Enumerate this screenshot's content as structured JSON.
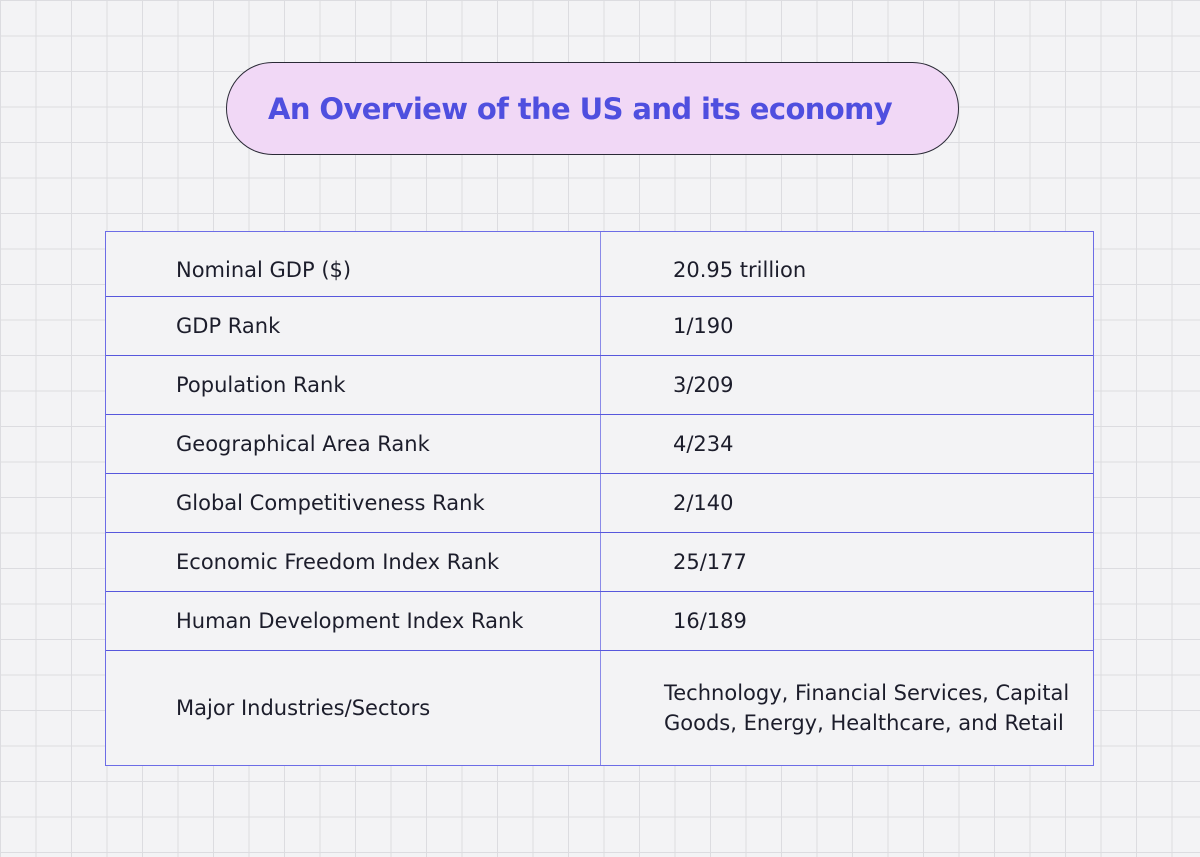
{
  "title": "An Overview of the US and its economy",
  "colors": {
    "background": "#f3f3f5",
    "grid_line": "#dcdce0",
    "pill_fill": "#f1d8f6",
    "pill_shadow": "#16161d",
    "title_text": "#4f4fdf",
    "table_border": "#5757dc",
    "body_text": "#1c1d2b"
  },
  "table": {
    "rows": [
      {
        "label": "Nominal GDP ($)",
        "value": "20.95 trillion"
      },
      {
        "label": "GDP Rank",
        "value": "1/190"
      },
      {
        "label": "Population Rank",
        "value": "3/209"
      },
      {
        "label": "Geographical Area Rank",
        "value": "4/234"
      },
      {
        "label": "Global Competitiveness Rank",
        "value": "2/140"
      },
      {
        "label": "Economic Freedom Index Rank",
        "value": "25/177"
      },
      {
        "label": "Human Development Index Rank",
        "value": "16/189"
      },
      {
        "label": "Major Industries/Sectors",
        "value": "Technology, Financial Services, Capital Goods, Energy, Healthcare, and Retail"
      }
    ]
  }
}
